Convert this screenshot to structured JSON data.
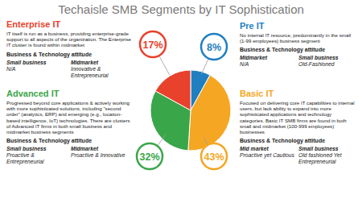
{
  "title": "Techaisle SMB Segments by IT Sophistication",
  "chart_data": {
    "type": "pie",
    "categories": [
      "Pre IT",
      "Basic IT",
      "Advanced IT",
      "Enterprise IT"
    ],
    "values": [
      8,
      43,
      32,
      17
    ],
    "value_labels": [
      "8%",
      "43%",
      "32%",
      "17%"
    ],
    "colors": [
      "#1f7fc1",
      "#f5a623",
      "#3aa64a",
      "#e8412c"
    ],
    "data_labels": true
  },
  "panels": [
    {
      "name": "Enterprise IT",
      "description": "IT itself is run as a business, providing enterprise-grade support to all aspects of the organization. The Enterprise IT cluster is found within midmarket",
      "attitude_heading": "Business & Technology attitude",
      "columns": [
        {
          "segment": "Small business",
          "attitude": "N/A"
        },
        {
          "segment": "Midmarket",
          "attitude": "Innovative & Entrepreneurial"
        }
      ]
    },
    {
      "name": "Pre IT",
      "description": "No internal IT resource, predominantly in the small (1-99 employees) business segment",
      "attitude_heading": "Business & Technology attitude",
      "columns": [
        {
          "segment": "Midmarket",
          "attitude": "N/A"
        },
        {
          "segment": "Small business",
          "attitude": "Old-Fashioned"
        }
      ]
    },
    {
      "name": "Advanced IT",
      "description": "Progressed beyond core applications & actively working with more sophisticated solutions, including \"second order\" (analytics, ERP) and emerging (e.g., location-based intelligence, IoT) technologies. There are clusters of Advanced IT firms in both small business and midmarket business segments",
      "attitude_heading": "Business & Technology attitude",
      "columns": [
        {
          "segment": "Small business",
          "attitude": "Proactive & Entrepreneurial"
        },
        {
          "segment": "Midmarket",
          "attitude": "Proactive & Innovative"
        }
      ]
    },
    {
      "name": "Basic IT",
      "description": "Focused on delivering core IT capabilities to internal users, but lack ability to expand into more sophisticated applications and technology categories. Basic IT SMB firms are found in both small and midmarket (100-999 employees) businesses",
      "attitude_heading": "Business & Technology attitude",
      "columns": [
        {
          "segment": "Mid market",
          "attitude": "Proactive yet Cautious"
        },
        {
          "segment": "Small business",
          "attitude": "Old fashioned Yet Entrepreneurial"
        }
      ]
    }
  ]
}
